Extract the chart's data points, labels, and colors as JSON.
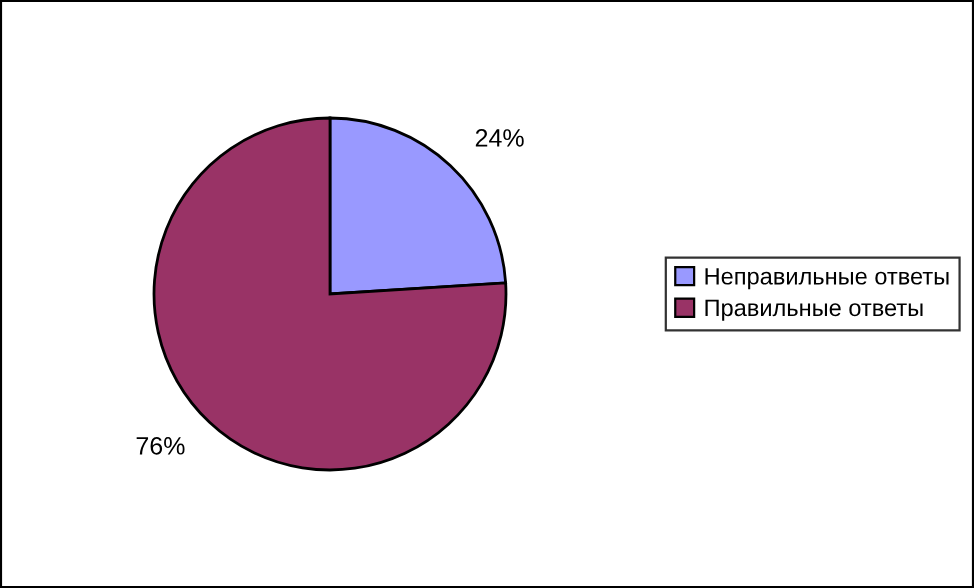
{
  "chart_data": {
    "type": "pie",
    "categories": [
      "Неправильные ответы",
      "Правильные ответы"
    ],
    "values": [
      24,
      76
    ],
    "colors": [
      "#9999ff",
      "#993366"
    ],
    "value_labels": [
      "24%",
      "76%"
    ],
    "legend": "right"
  }
}
